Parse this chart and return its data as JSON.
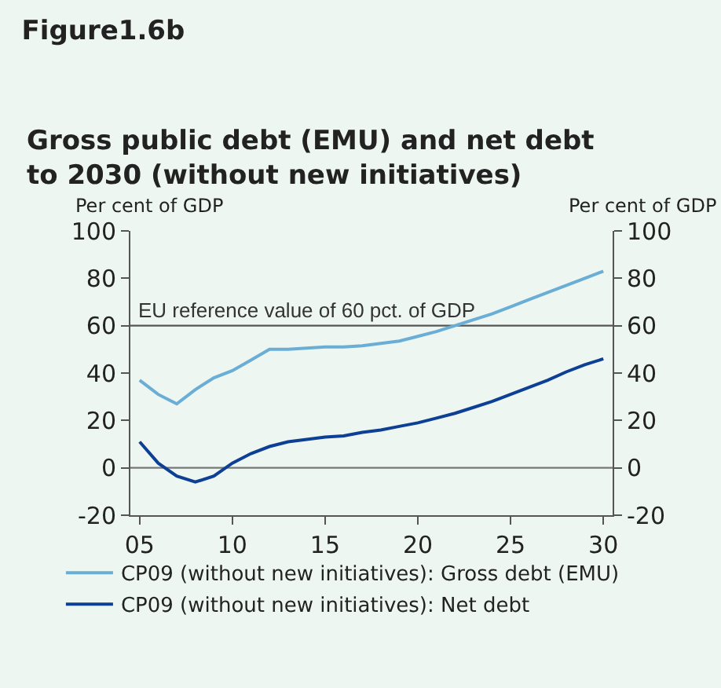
{
  "chart_data": {
    "type": "line",
    "title": "Figure1.6b",
    "subtitle": "Gross public debt (EMU) and net debt to 2030 (without new initiatives)",
    "ylabel": "Per cent of GDP",
    "y2label": "Per cent of GDP",
    "x": [
      2005,
      2006,
      2007,
      2008,
      2009,
      2010,
      2011,
      2012,
      2013,
      2014,
      2015,
      2016,
      2017,
      2018,
      2019,
      2020,
      2021,
      2022,
      2023,
      2024,
      2025,
      2026,
      2027,
      2028,
      2029,
      2030
    ],
    "series": [
      {
        "name": "CP09 (without new initiatives): Gross debt (EMU)",
        "color": "#6aaed6",
        "values": [
          37,
          31,
          27,
          33,
          38,
          41,
          45.5,
          50,
          50,
          50.5,
          51,
          51,
          51.5,
          52.5,
          53.5,
          55.5,
          57.5,
          60,
          62.5,
          65,
          68,
          71,
          74,
          77,
          80,
          83
        ]
      },
      {
        "name": "CP09 (without new initiatives): Net debt",
        "color": "#0d3f94",
        "values": [
          11,
          2,
          -3.5,
          -6,
          -3.5,
          2,
          6,
          9,
          11,
          12,
          13,
          13.5,
          15,
          16,
          17.5,
          19,
          21,
          23,
          25.5,
          28,
          31,
          34,
          37,
          40.5,
          43.5,
          46
        ]
      }
    ],
    "xlim": [
      2004.5,
      2030.5
    ],
    "xticks": [
      {
        "value": 2005,
        "label": "05"
      },
      {
        "value": 2010,
        "label": "10"
      },
      {
        "value": 2015,
        "label": "15"
      },
      {
        "value": 2020,
        "label": "20"
      },
      {
        "value": 2025,
        "label": "25"
      },
      {
        "value": 2030,
        "label": "30"
      }
    ],
    "ylim": [
      -20,
      100
    ],
    "yticks": [
      -20,
      0,
      20,
      40,
      60,
      80,
      100
    ],
    "y2lim": [
      -20,
      100
    ],
    "y2ticks": [
      -20,
      0,
      20,
      40,
      60,
      80,
      100
    ],
    "ref_lines": [
      {
        "axis": "y",
        "value": 60,
        "label": "EU reference value of 60 pct. of GDP",
        "color": "#555555"
      },
      {
        "axis": "y",
        "value": 0,
        "color": "#777777"
      }
    ],
    "grid": false,
    "legend": "bottom",
    "marker": "none",
    "line_style": "solid"
  }
}
